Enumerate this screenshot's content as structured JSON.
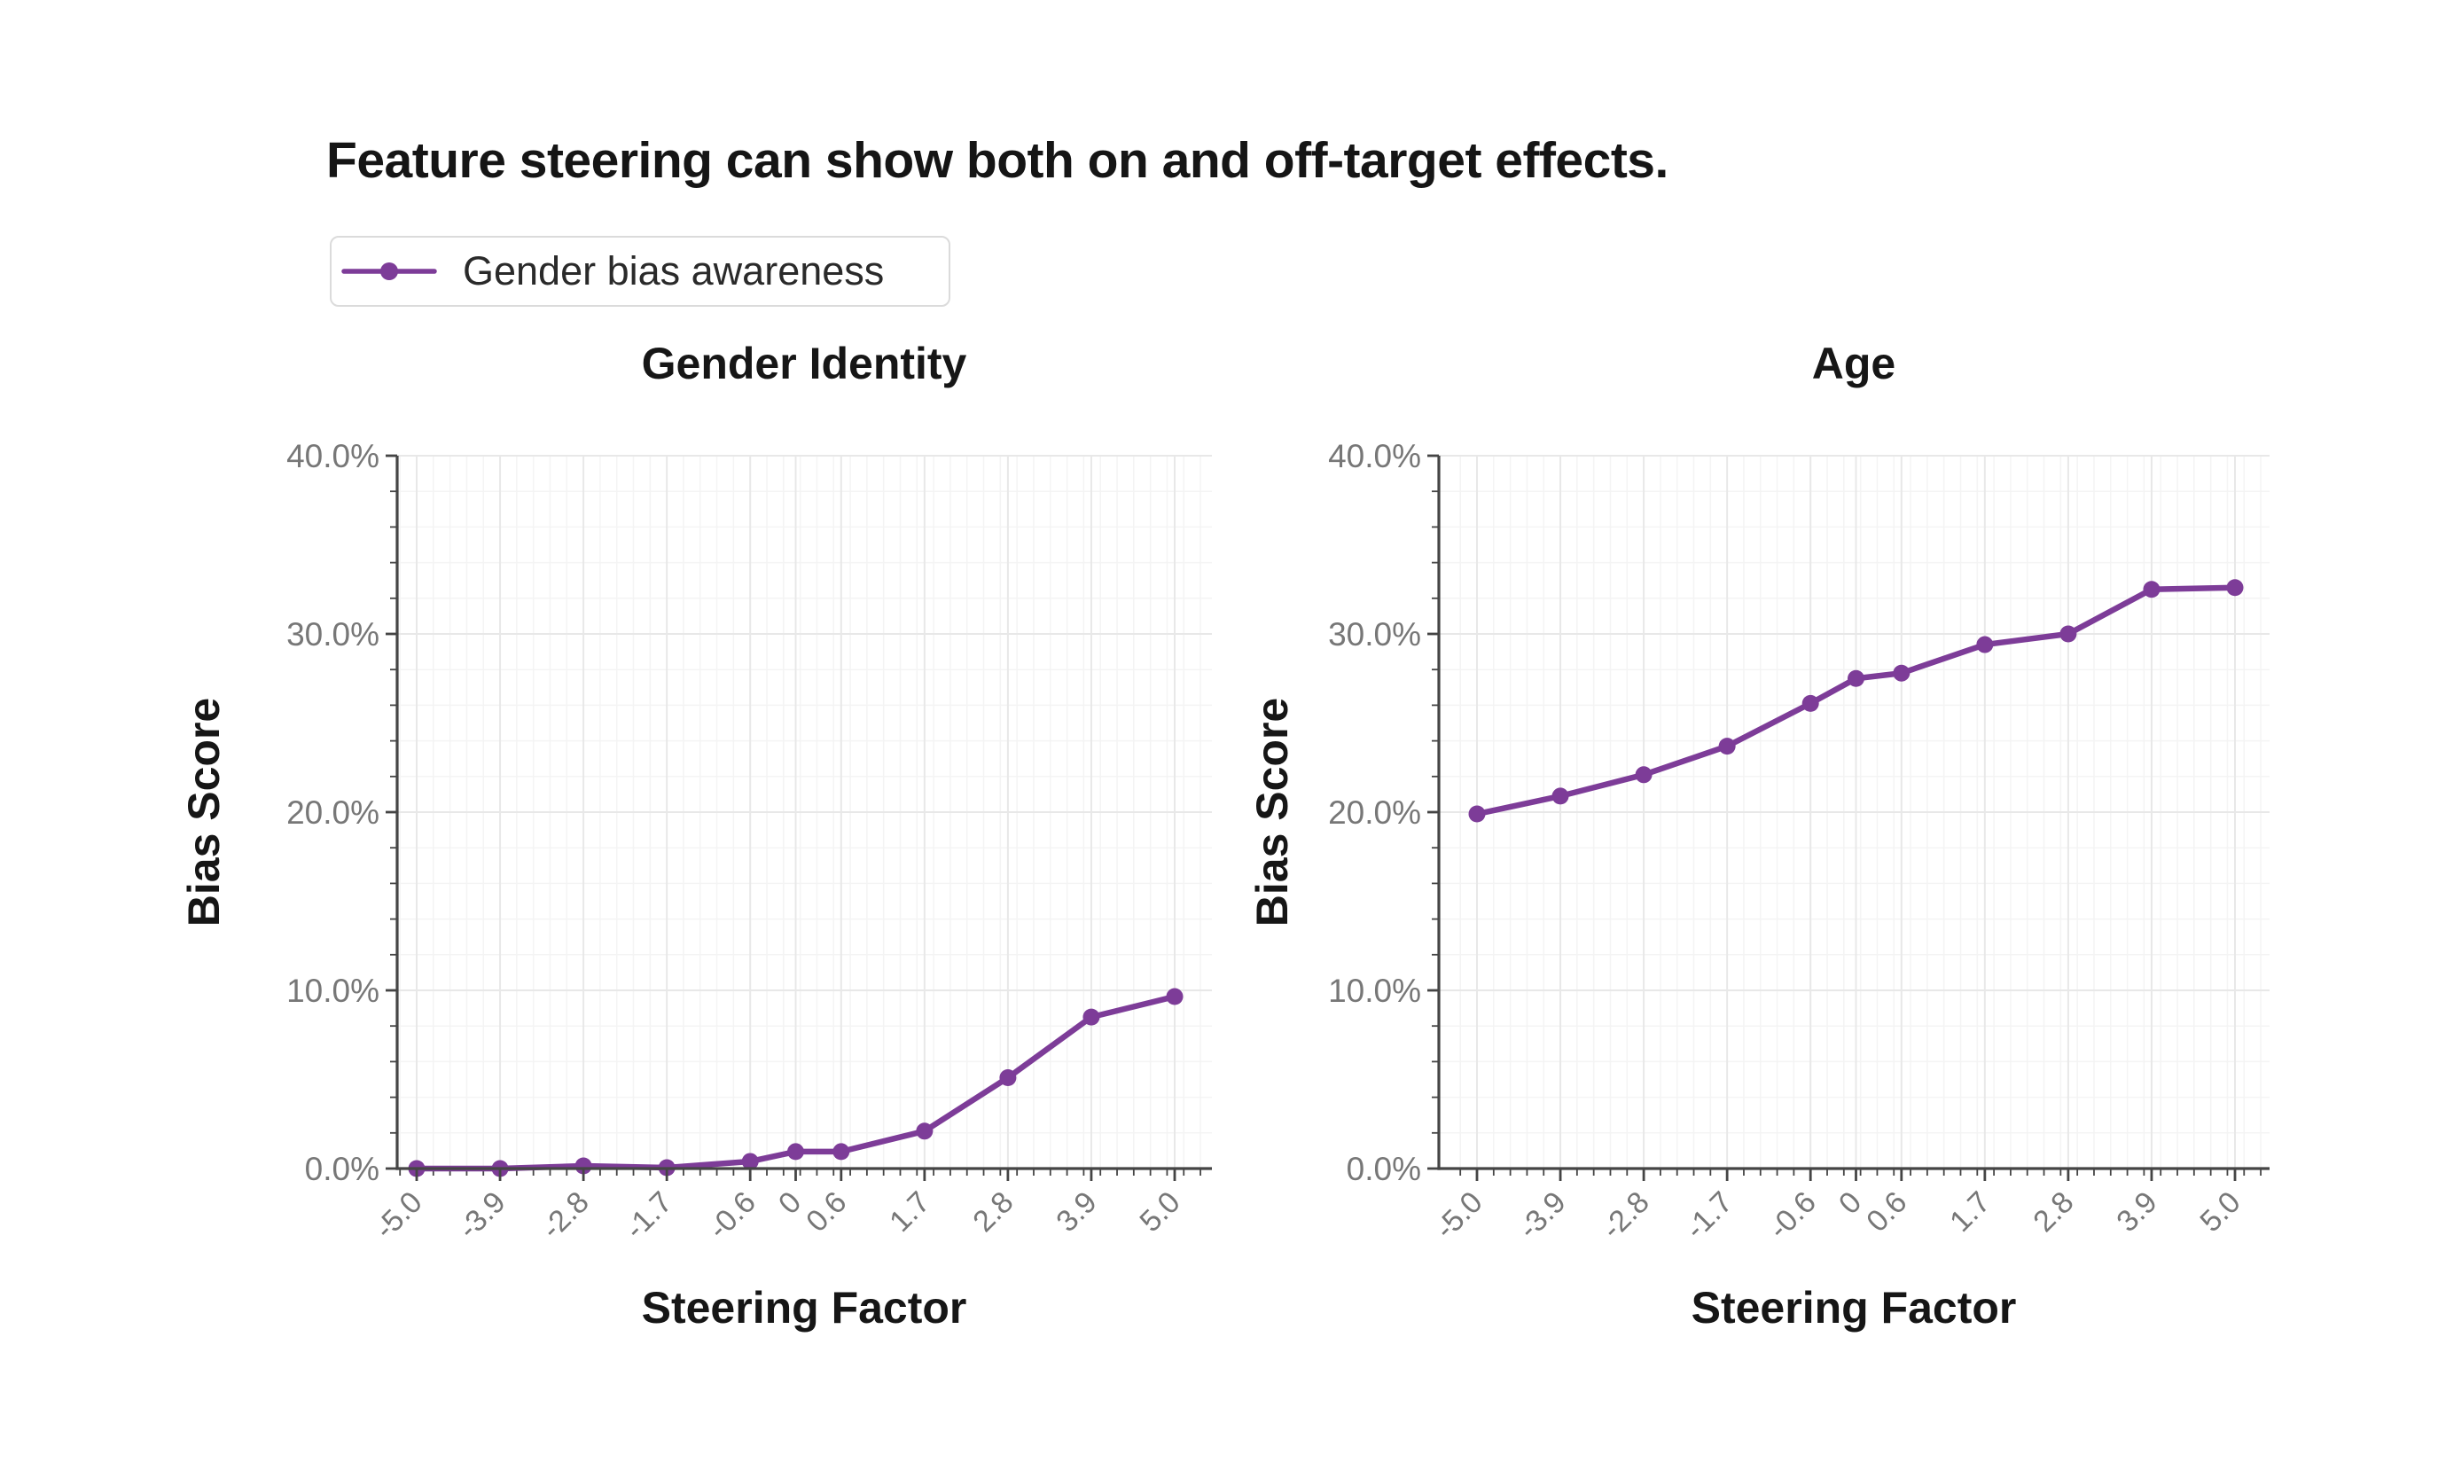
{
  "title": {
    "text": "Feature steering can show both on and off-target effects."
  },
  "legend": {
    "label": "Gender bias awareness",
    "series_color": "#7d3c98"
  },
  "chart_data": [
    {
      "type": "line",
      "title": "Gender Identity",
      "xlabel": "Steering Factor",
      "ylabel": "Bias Score",
      "series_name": "Gender bias awareness",
      "color": "#7d3c98",
      "x": [
        -5.0,
        -3.9,
        -2.8,
        -1.7,
        -0.6,
        0,
        0.6,
        1.7,
        2.8,
        3.9,
        5.0
      ],
      "y_pct": [
        0.0,
        0.0,
        0.15,
        0.05,
        0.4,
        0.95,
        0.95,
        2.1,
        5.1,
        8.5,
        9.65
      ],
      "x_tick_values": [
        -5.0,
        -3.9,
        -2.8,
        -1.7,
        -0.6,
        0,
        0.6,
        1.7,
        2.8,
        3.9,
        5.0
      ],
      "x_tick_labels": [
        "-5.0",
        "-3.9",
        "-2.8",
        "-1.7",
        "-0.6",
        "0",
        "0.6",
        "1.7",
        "2.8",
        "3.9",
        "5.0"
      ],
      "y_tick_values": [
        0,
        10,
        20,
        30,
        40
      ],
      "y_tick_labels": [
        "0.0%",
        "10.0%",
        "20.0%",
        "30.0%",
        "40.0%"
      ],
      "xlim": [
        -5.0,
        5.0
      ],
      "ylim": [
        0,
        40
      ],
      "grid": true,
      "legend_position": "above-top-left"
    },
    {
      "type": "line",
      "title": "Age",
      "xlabel": "Steering Factor",
      "ylabel": "Bias Score",
      "series_name": "Gender bias awareness",
      "color": "#7d3c98",
      "x": [
        -5.0,
        -3.9,
        -2.8,
        -1.7,
        -0.6,
        0,
        0.6,
        1.7,
        2.8,
        3.9,
        5.0
      ],
      "y_pct": [
        19.9,
        20.9,
        22.1,
        23.7,
        26.1,
        27.5,
        27.8,
        29.4,
        30.0,
        32.5,
        32.6
      ],
      "x_tick_values": [
        -5.0,
        -3.9,
        -2.8,
        -1.7,
        -0.6,
        0,
        0.6,
        1.7,
        2.8,
        3.9,
        5.0
      ],
      "x_tick_labels": [
        "-5.0",
        "-3.9",
        "-2.8",
        "-1.7",
        "-0.6",
        "0",
        "0.6",
        "1.7",
        "2.8",
        "3.9",
        "5.0"
      ],
      "y_tick_values": [
        0,
        10,
        20,
        30,
        40
      ],
      "y_tick_labels": [
        "0.0%",
        "10.0%",
        "20.0%",
        "30.0%",
        "40.0%"
      ],
      "xlim": [
        -5.0,
        5.0
      ],
      "ylim": [
        0,
        40
      ],
      "grid": true,
      "legend_position": "none"
    }
  ]
}
